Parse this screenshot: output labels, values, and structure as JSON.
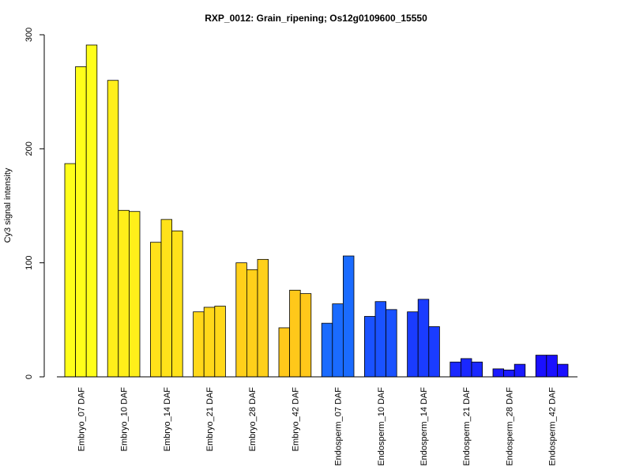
{
  "chart_data": {
    "type": "bar",
    "title": "RXP_0012: Grain_ripening; Os12g0109600_15550",
    "xlabel": "",
    "ylabel": "Cy3 signal intensity",
    "ylim": [
      0,
      300
    ],
    "yticks": [
      0,
      100,
      200,
      300
    ],
    "grid": false,
    "categories": [
      "Embryo_07 DAF",
      "Embryo_10 DAF",
      "Embryo_14 DAF",
      "Embryo_21 DAF",
      "Embryo_28 DAF",
      "Embryo_42 DAF",
      "Endosperm_07 DAF",
      "Endosperm_10 DAF",
      "Endosperm_14 DAF",
      "Endosperm_21 DAF",
      "Endosperm_28 DAF",
      "Endosperm_42 DAF"
    ],
    "group_colors": [
      "#ffff1a",
      "#ffef1a",
      "#ffe21a",
      "#ffd81a",
      "#ffd01a",
      "#ffc81a",
      "#1a6bff",
      "#1a52ff",
      "#1a3cff",
      "#1a28ff",
      "#1a1aff",
      "#1a10ff"
    ],
    "values": [
      [
        187,
        272,
        291
      ],
      [
        260,
        146,
        145
      ],
      [
        118,
        138,
        128
      ],
      [
        57,
        61,
        62
      ],
      [
        100,
        94,
        103
      ],
      [
        43,
        76,
        73
      ],
      [
        47,
        64,
        106
      ],
      [
        53,
        66,
        59
      ],
      [
        57,
        68,
        44
      ],
      [
        13,
        16,
        13
      ],
      [
        7,
        6,
        11
      ],
      [
        19,
        19,
        11
      ]
    ]
  }
}
